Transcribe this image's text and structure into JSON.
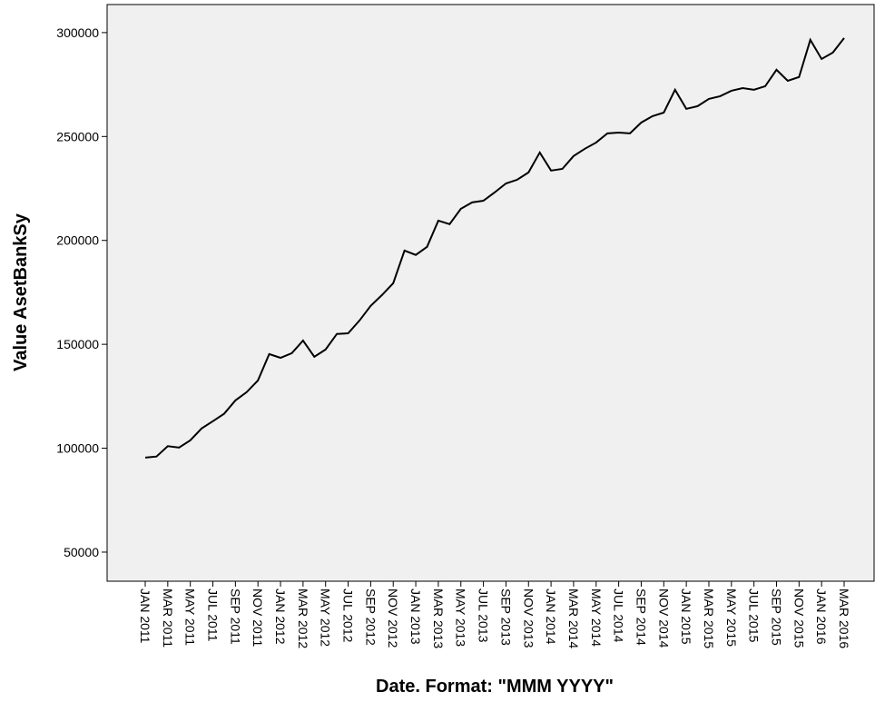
{
  "chart_data": {
    "type": "line",
    "x_label": "Date.  Format:  \"MMM YYYY\"",
    "y_label": "Value AsetBankSy",
    "color": "#000000",
    "categories": [
      "JAN 2011",
      null,
      "MAR 2011",
      null,
      "MAY 2011",
      null,
      "JUL 2011",
      null,
      "SEP 2011",
      null,
      "NOV 2011",
      null,
      "JAN 2012",
      null,
      "MAR 2012",
      null,
      "MAY 2012",
      null,
      "JUL 2012",
      null,
      "SEP 2012",
      null,
      "NOV 2012",
      null,
      "JAN 2013",
      null,
      "MAR 2013",
      null,
      "MAY 2013",
      null,
      "JUL 2013",
      null,
      "SEP 2013",
      null,
      "NOV 2013",
      null,
      "JAN 2014",
      null,
      "MAR 2014",
      null,
      "MAY 2014",
      null,
      "JUL 2014",
      null,
      "SEP 2014",
      null,
      "NOV 2014",
      null,
      "JAN 2015",
      null,
      "MAR 2015",
      null,
      "MAY 2015",
      null,
      "JUL 2015",
      null,
      "SEP 2015",
      null,
      "NOV 2015",
      null,
      "JAN 2016",
      null,
      "MAR 2016"
    ],
    "values": [
      95500,
      96000,
      101000,
      100300,
      103800,
      109500,
      113000,
      116600,
      123000,
      127000,
      132600,
      145300,
      143500,
      145700,
      151800,
      144000,
      147500,
      155000,
      155300,
      161400,
      168500,
      173700,
      179400,
      195100,
      193000,
      196900,
      209500,
      207800,
      215200,
      218300,
      219100,
      223100,
      227400,
      229200,
      232700,
      242300,
      233600,
      234400,
      240600,
      244100,
      247100,
      251500,
      251900,
      251500,
      256700,
      259800,
      261500,
      272500,
      263300,
      264600,
      268100,
      269400,
      272000,
      273300,
      272500,
      274200,
      282100,
      276800,
      278600,
      296500,
      287300,
      290400,
      297400
    ],
    "ylim": [
      36000,
      313500
    ],
    "yticks": [
      50000,
      100000,
      150000,
      200000,
      250000,
      300000
    ]
  }
}
